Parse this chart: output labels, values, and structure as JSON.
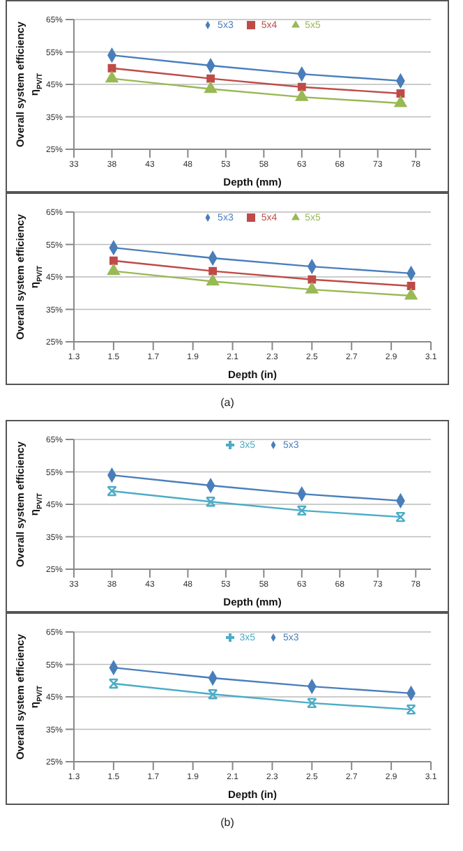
{
  "chart_data": [
    {
      "type": "line",
      "xlabel": "Depth (mm)",
      "ylabel": "Overall system efficiency\nη$_{PV/T}$",
      "x": [
        38,
        51,
        63,
        76
      ],
      "xlim": [
        33,
        80
      ],
      "xticks": [
        33,
        38,
        43,
        48,
        53,
        58,
        63,
        68,
        73,
        78
      ],
      "ylim": [
        25,
        65
      ],
      "yticks": [
        {
          "value": 25,
          "label": "25%"
        },
        {
          "value": 35,
          "label": "35%"
        },
        {
          "value": 45,
          "label": "45%"
        },
        {
          "value": 55,
          "label": "55%"
        },
        {
          "value": 65,
          "label": "65%"
        }
      ],
      "grid": "y",
      "legend": "top",
      "series": [
        {
          "name": "5x3",
          "color": "#4a7ebb",
          "marker": "diamond",
          "values": [
            54,
            50.8,
            48.2,
            46.1
          ]
        },
        {
          "name": "5x4",
          "color": "#be4b48",
          "marker": "square",
          "values": [
            50,
            46.8,
            44.2,
            42.2
          ]
        },
        {
          "name": "5x5",
          "color": "#98b954",
          "marker": "triangle",
          "values": [
            46.8,
            43.6,
            41.1,
            39.2
          ]
        }
      ]
    },
    {
      "type": "line",
      "xlabel": "Depth (in)",
      "ylabel": "Overall system efficiency\nη$_{PV/T}$",
      "x": [
        1.5,
        2,
        2.5,
        3
      ],
      "xlim": [
        1.3,
        3.1
      ],
      "xticks": [
        1.3,
        1.5,
        1.7,
        1.9,
        2.1,
        2.3,
        2.5,
        2.7,
        2.9,
        3.1
      ],
      "ylim": [
        25,
        65
      ],
      "yticks": [
        {
          "value": 25,
          "label": "25%"
        },
        {
          "value": 35,
          "label": "35%"
        },
        {
          "value": 45,
          "label": "45%"
        },
        {
          "value": 55,
          "label": "55%"
        },
        {
          "value": 65,
          "label": "65%"
        }
      ],
      "grid": "y",
      "legend": "top",
      "annotations": [
        "(a)"
      ],
      "series": [
        {
          "name": "5x3",
          "color": "#4a7ebb",
          "marker": "diamond",
          "values": [
            54,
            50.8,
            48.2,
            46.1
          ]
        },
        {
          "name": "5x4",
          "color": "#be4b48",
          "marker": "square",
          "values": [
            50,
            46.8,
            44.2,
            42.2
          ]
        },
        {
          "name": "5x5",
          "color": "#98b954",
          "marker": "triangle",
          "values": [
            46.8,
            43.6,
            41.1,
            39.2
          ]
        }
      ]
    },
    {
      "type": "line",
      "xlabel": "Depth (mm)",
      "ylabel": "Overall system efficiency\nη$_{PV/T}$",
      "x": [
        38,
        51,
        63,
        76
      ],
      "xlim": [
        33,
        80
      ],
      "xticks": [
        33,
        38,
        43,
        48,
        53,
        58,
        63,
        68,
        73,
        78
      ],
      "ylim": [
        25,
        65
      ],
      "yticks": [
        {
          "value": 25,
          "label": "25%"
        },
        {
          "value": 35,
          "label": "35%"
        },
        {
          "value": 45,
          "label": "45%"
        },
        {
          "value": 55,
          "label": "55%"
        },
        {
          "value": 65,
          "label": "65%"
        }
      ],
      "grid": "y",
      "legend": "top",
      "series": [
        {
          "name": "5x3",
          "color": "#4a7ebb",
          "marker": "diamond",
          "values": [
            54,
            50.8,
            48.2,
            46.1
          ]
        },
        {
          "name": "3x5",
          "color": "#4bacc6",
          "marker": "cross",
          "values": [
            49.1,
            45.8,
            43.1,
            41.1
          ]
        }
      ]
    },
    {
      "type": "line",
      "xlabel": "Depth (in)",
      "ylabel": "Overall system efficiency\nη$_{PV/T}$",
      "x": [
        1.5,
        2,
        2.5,
        3
      ],
      "xlim": [
        1.3,
        3.1
      ],
      "xticks": [
        1.3,
        1.5,
        1.7,
        1.9,
        2.1,
        2.3,
        2.5,
        2.7,
        2.9,
        3.1
      ],
      "ylim": [
        25,
        65
      ],
      "yticks": [
        {
          "value": 25,
          "label": "25%"
        },
        {
          "value": 35,
          "label": "35%"
        },
        {
          "value": 45,
          "label": "45%"
        },
        {
          "value": 55,
          "label": "55%"
        },
        {
          "value": 65,
          "label": "65%"
        }
      ],
      "grid": "y",
      "legend": "top",
      "annotations": [
        "(b)"
      ],
      "series": [
        {
          "name": "5x3",
          "color": "#4a7ebb",
          "marker": "diamond",
          "values": [
            54,
            50.8,
            48.2,
            46.1
          ]
        },
        {
          "name": "3x5",
          "color": "#4bacc6",
          "marker": "cross",
          "values": [
            49.1,
            45.8,
            43.1,
            41.1
          ]
        }
      ]
    }
  ]
}
